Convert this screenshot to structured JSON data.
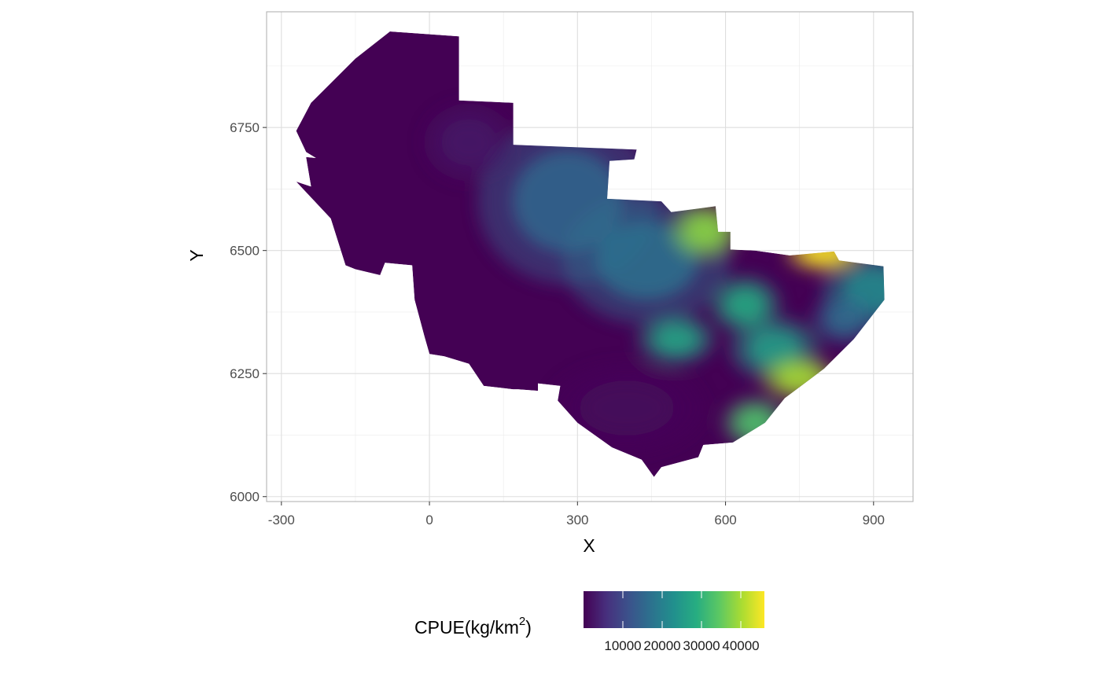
{
  "chart_data": {
    "type": "heatmap",
    "xlabel": "X",
    "ylabel": "Y",
    "xlim": [
      -330,
      980
    ],
    "ylim": [
      5990,
      6985
    ],
    "x_ticks": [
      -300,
      0,
      300,
      600,
      900
    ],
    "y_ticks": [
      6000,
      6250,
      6500,
      6750
    ],
    "grid": true,
    "legend": {
      "title_main": "CPUE",
      "title_unit": "(kg/km",
      "title_sup": "2",
      "title_close": ")",
      "placement": "bottom",
      "colormap": "viridis",
      "range": [
        0,
        46000
      ],
      "ticks": [
        10000,
        20000,
        30000,
        40000
      ]
    },
    "region_outline": [
      [
        -270,
        6743
      ],
      [
        -240,
        6800
      ],
      [
        -200,
        6840
      ],
      [
        -150,
        6890
      ],
      [
        -80,
        6945
      ],
      [
        60,
        6935
      ],
      [
        60,
        6805
      ],
      [
        170,
        6800
      ],
      [
        170,
        6715
      ],
      [
        420,
        6705
      ],
      [
        415,
        6685
      ],
      [
        365,
        6682
      ],
      [
        360,
        6605
      ],
      [
        470,
        6600
      ],
      [
        490,
        6578
      ],
      [
        580,
        6590
      ],
      [
        585,
        6538
      ],
      [
        610,
        6538
      ],
      [
        610,
        6502
      ],
      [
        660,
        6500
      ],
      [
        730,
        6490
      ],
      [
        820,
        6498
      ],
      [
        830,
        6480
      ],
      [
        920,
        6468
      ],
      [
        922,
        6400
      ],
      [
        860,
        6320
      ],
      [
        800,
        6260
      ],
      [
        720,
        6200
      ],
      [
        680,
        6150
      ],
      [
        615,
        6110
      ],
      [
        555,
        6105
      ],
      [
        545,
        6080
      ],
      [
        470,
        6060
      ],
      [
        455,
        6040
      ],
      [
        430,
        6075
      ],
      [
        370,
        6100
      ],
      [
        300,
        6150
      ],
      [
        260,
        6195
      ],
      [
        265,
        6225
      ],
      [
        220,
        6230
      ],
      [
        220,
        6215
      ],
      [
        180,
        6218
      ],
      [
        170,
        6218
      ],
      [
        110,
        6225
      ],
      [
        80,
        6270
      ],
      [
        30,
        6285
      ],
      [
        0,
        6290
      ],
      [
        -10,
        6325
      ],
      [
        -30,
        6400
      ],
      [
        -35,
        6470
      ],
      [
        -90,
        6475
      ],
      [
        -100,
        6450
      ],
      [
        -150,
        6462
      ],
      [
        -170,
        6470
      ],
      [
        -200,
        6565
      ],
      [
        -270,
        6640
      ],
      [
        -240,
        6630
      ],
      [
        -250,
        6690
      ],
      [
        -230,
        6688
      ],
      [
        -250,
        6700
      ]
    ],
    "hotspots": [
      {
        "x": 80,
        "y": 6720,
        "value": 2500,
        "sx": 70,
        "sy": 60
      },
      {
        "x": 280,
        "y": 6600,
        "value": 15000,
        "sx": 140,
        "sy": 130
      },
      {
        "x": 440,
        "y": 6480,
        "value": 17000,
        "sx": 130,
        "sy": 100
      },
      {
        "x": 560,
        "y": 6540,
        "value": 38000,
        "sx": 55,
        "sy": 45
      },
      {
        "x": 640,
        "y": 6390,
        "value": 28000,
        "sx": 55,
        "sy": 45
      },
      {
        "x": 500,
        "y": 6320,
        "value": 27000,
        "sx": 60,
        "sy": 40
      },
      {
        "x": 800,
        "y": 6495,
        "value": 46000,
        "sx": 60,
        "sy": 30
      },
      {
        "x": 900,
        "y": 6420,
        "value": 22000,
        "sx": 80,
        "sy": 60
      },
      {
        "x": 840,
        "y": 6360,
        "value": 16000,
        "sx": 50,
        "sy": 40
      },
      {
        "x": 750,
        "y": 6240,
        "value": 40000,
        "sx": 60,
        "sy": 35
      },
      {
        "x": 660,
        "y": 6150,
        "value": 33000,
        "sx": 50,
        "sy": 40
      },
      {
        "x": 700,
        "y": 6300,
        "value": 26000,
        "sx": 70,
        "sy": 50
      },
      {
        "x": 400,
        "y": 6180,
        "value": 1000,
        "sx": 120,
        "sy": 70
      }
    ]
  }
}
